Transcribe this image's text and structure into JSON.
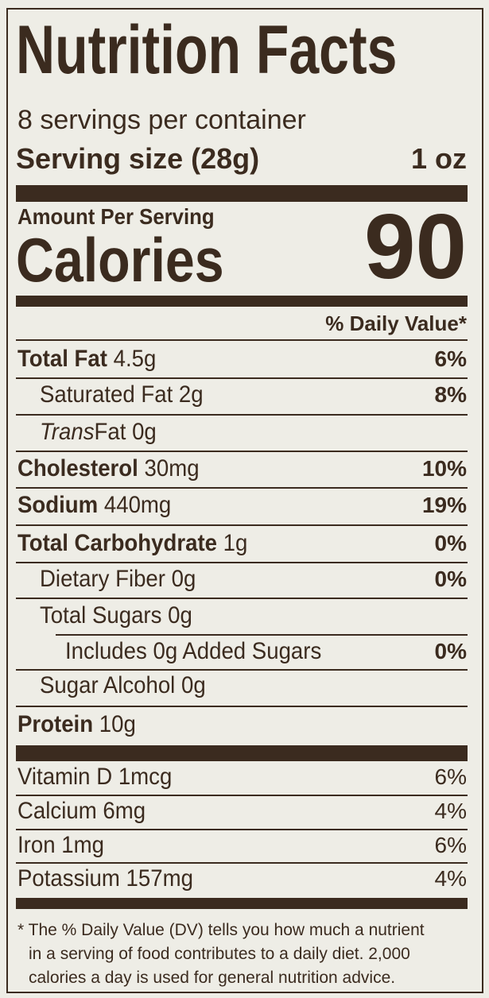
{
  "header": {
    "title": "Nutrition Facts",
    "servings": "8 servings per container",
    "serving_size_label": "Serving size (28g)",
    "serving_size_value": "1 oz"
  },
  "calories": {
    "amount_label": "Amount Per Serving",
    "label": "Calories",
    "value": 90
  },
  "daily_value_header": "% Daily Value*",
  "nutrients": [
    {
      "name": "Total Fat",
      "amount": "4.5g",
      "dv": "6%",
      "bold": true,
      "indent": 0
    },
    {
      "name": "Saturated Fat",
      "amount": "2g",
      "dv": "8%",
      "bold": false,
      "indent": 1
    },
    {
      "italic_prefix": "Trans",
      "name": "Fat",
      "amount": "0g",
      "bold": false,
      "indent": 1
    },
    {
      "name": "Cholesterol",
      "amount": "30mg",
      "dv": "10%",
      "bold": true,
      "indent": 0
    },
    {
      "name": "Sodium",
      "amount": "440mg",
      "dv": "19%",
      "bold": true,
      "indent": 0
    },
    {
      "name": "Total Carbohydrate",
      "amount": "1g",
      "dv": "0%",
      "bold": true,
      "indent": 0
    },
    {
      "name": "Dietary Fiber",
      "amount": "0g",
      "dv": "0%",
      "bold": false,
      "indent": 1
    },
    {
      "name": "Total Sugars",
      "amount": "0g",
      "bold": false,
      "indent": 1
    },
    {
      "name": "Includes",
      "amount": "0g Added Sugars",
      "dv": "0%",
      "bold": false,
      "indent": 2
    },
    {
      "name": "Sugar Alcohol",
      "amount": "0g",
      "bold": false,
      "indent": 1
    },
    {
      "name": "Protein",
      "amount": "10g",
      "bold": true,
      "indent": 0
    }
  ],
  "vitamins": [
    {
      "name": "Vitamin D",
      "amount": "1mcg",
      "dv": "6%"
    },
    {
      "name": "Calcium",
      "amount": "6mg",
      "dv": "4%"
    },
    {
      "name": "Iron",
      "amount": "1mg",
      "dv": "6%"
    },
    {
      "name": "Potassium",
      "amount": "157mg",
      "dv": "4%"
    }
  ],
  "footnote": [
    "* The % Daily Value (DV) tells you how much a nutrient",
    "in a serving of food contributes to a daily diet. 2,000",
    "calories a day is used for general nutrition advice."
  ]
}
